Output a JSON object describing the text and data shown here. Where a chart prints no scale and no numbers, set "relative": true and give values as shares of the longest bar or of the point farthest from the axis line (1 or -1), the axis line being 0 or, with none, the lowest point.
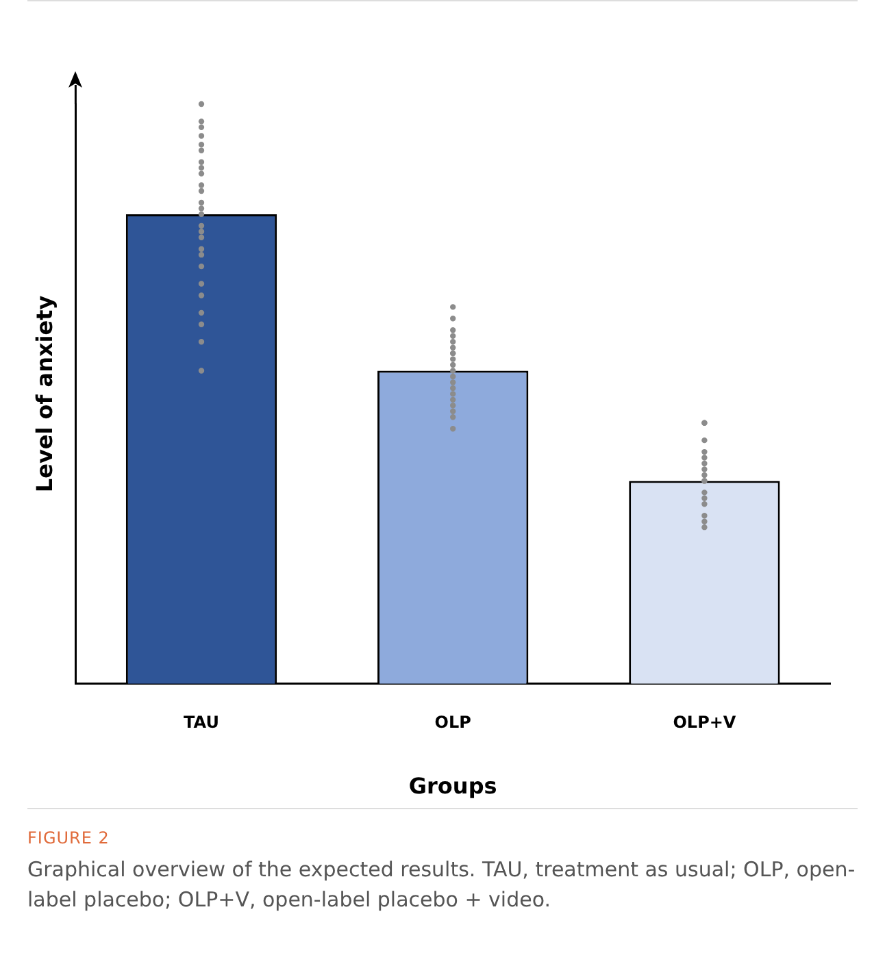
{
  "chart_data": {
    "type": "bar",
    "relative": true,
    "xlabel": "Groups",
    "ylabel": "Level of anxiety",
    "categories": [
      "TAU",
      "OLP",
      "OLP+V"
    ],
    "colors": [
      "#2f5597",
      "#8eaadc",
      "#d9e2f3"
    ],
    "values": [
      0.81,
      0.54,
      0.35
    ],
    "series": [
      {
        "type": "scatter",
        "color": "#8c8c8c",
        "marker": "circle",
        "x": [
          "TAU",
          "TAU",
          "TAU",
          "TAU",
          "TAU",
          "TAU",
          "TAU",
          "TAU",
          "TAU",
          "TAU",
          "TAU",
          "TAU",
          "TAU",
          "TAU",
          "TAU",
          "TAU",
          "TAU",
          "TAU",
          "TAU",
          "TAU",
          "TAU",
          "TAU",
          "TAU",
          "TAU",
          "TAU",
          "TAU",
          "OLP",
          "OLP",
          "OLP",
          "OLP",
          "OLP",
          "OLP",
          "OLP",
          "OLP",
          "OLP",
          "OLP",
          "OLP",
          "OLP",
          "OLP",
          "OLP",
          "OLP",
          "OLP",
          "OLP",
          "OLP",
          "OLP",
          "OLP",
          "OLP+V",
          "OLP+V",
          "OLP+V",
          "OLP+V",
          "OLP+V",
          "OLP+V",
          "OLP+V",
          "OLP+V",
          "OLP+V",
          "OLP+V",
          "OLP+V",
          "OLP+V",
          "OLP+V",
          "OLP+V",
          "OLP+V",
          "OLP+V"
        ],
        "values": [
          1.0,
          0.97,
          0.96,
          0.945,
          0.93,
          0.92,
          0.9,
          0.89,
          0.88,
          0.86,
          0.85,
          0.83,
          0.82,
          0.81,
          0.79,
          0.78,
          0.77,
          0.75,
          0.74,
          0.72,
          0.69,
          0.67,
          0.64,
          0.62,
          0.59,
          0.54,
          0.65,
          0.63,
          0.61,
          0.6,
          0.59,
          0.58,
          0.57,
          0.57,
          0.56,
          0.55,
          0.54,
          0.53,
          0.52,
          0.51,
          0.5,
          0.49,
          0.48,
          0.47,
          0.46,
          0.44,
          0.45,
          0.45,
          0.42,
          0.4,
          0.39,
          0.38,
          0.37,
          0.36,
          0.35,
          0.35,
          0.33,
          0.32,
          0.31,
          0.29,
          0.28,
          0.27
        ]
      }
    ],
    "grid": false,
    "legend": false,
    "annotations": [
      "FIGURE 2",
      "Graphical overview of the expected results. TAU, treatment as usual; OLP, open-label placebo; OLP+V, open-label placebo + video."
    ]
  }
}
